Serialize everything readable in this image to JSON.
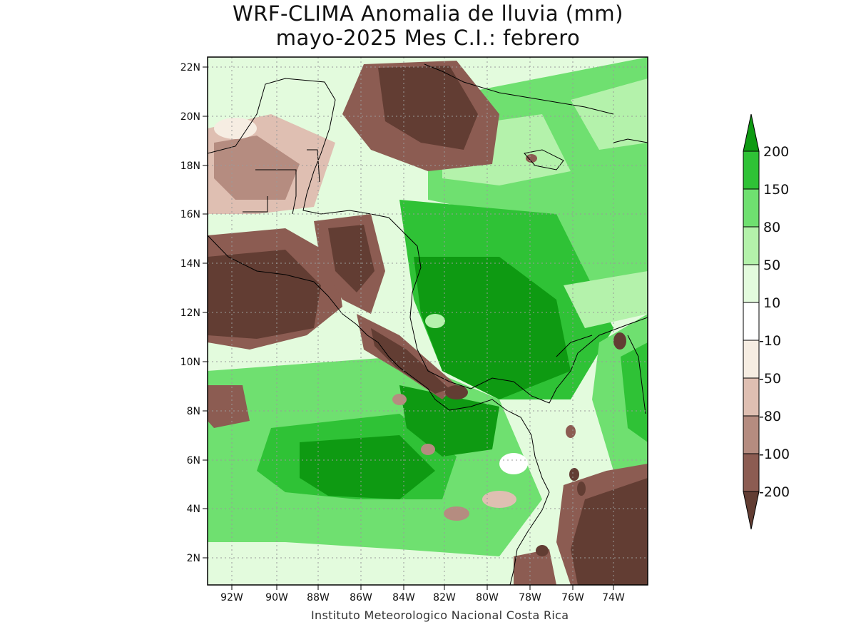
{
  "title": {
    "line1": "WRF-CLIMA Anomalia de lluvia (mm)",
    "line2": "mayo-2025 Mes C.I.: febrero"
  },
  "footer": "Instituto Meteorologico Nacional Costa Rica",
  "axes": {
    "lat_labels": [
      "22N",
      "20N",
      "18N",
      "16N",
      "14N",
      "12N",
      "10N",
      "8N",
      "6N",
      "4N",
      "2N"
    ],
    "lon_labels": [
      "92W",
      "90W",
      "88W",
      "86W",
      "84W",
      "82W",
      "80W",
      "78W",
      "76W",
      "74W"
    ]
  },
  "colorbar": {
    "labels": [
      "200",
      "150",
      "80",
      "50",
      "10",
      "-10",
      "-50",
      "-80",
      "-100",
      "-200"
    ],
    "colors": {
      "gt200": "#0e9a12",
      "150_200": "#2fc236",
      "80_150": "#6fe070",
      "50_80": "#b4f2ab",
      "10_50": "#e3fbdd",
      "n10_10": "#ffffff",
      "n50_n10": "#f6ede2",
      "n80_n50": "#dfbfb2",
      "n100_n80": "#b58c80",
      "n200_n100": "#8c5c52",
      "lt_n200": "#623d33"
    }
  }
}
